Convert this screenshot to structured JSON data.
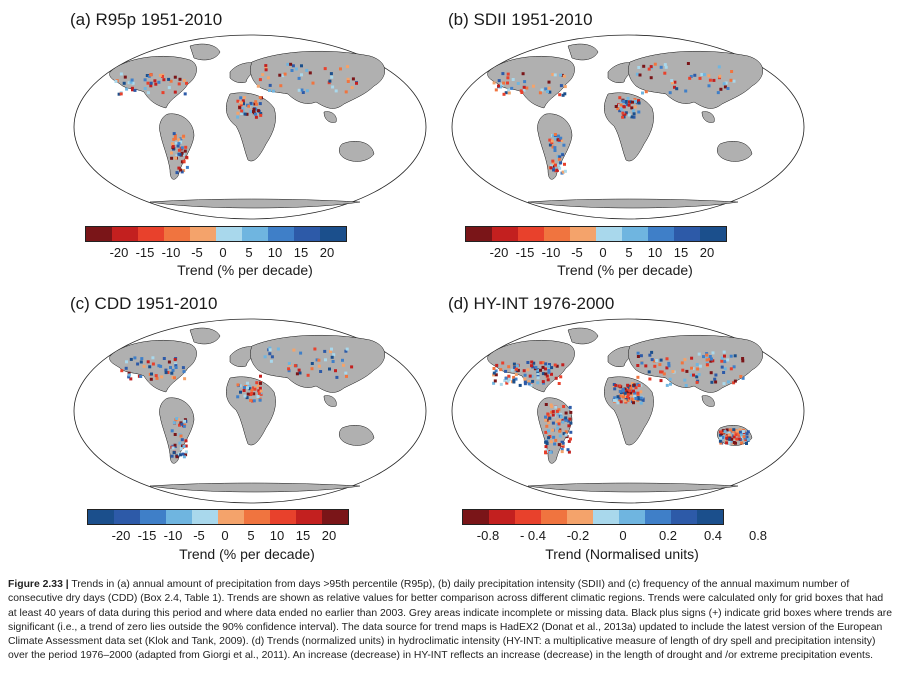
{
  "colors": {
    "land_missing": "#b0b0b0",
    "ocean": "#ffffff",
    "coast": "#111111"
  },
  "panels": [
    {
      "title": "(a)  R95p 1951-2010",
      "colorbar": [
        "#7a1518",
        "#c3201f",
        "#e8412c",
        "#f0743f",
        "#f4a36b",
        "#a9d8ec",
        "#6fb5e0",
        "#3f7fc8",
        "#2d5aa8",
        "#1b4f8c"
      ],
      "tick_labels": [
        "-20",
        "-15",
        "-10",
        "-5",
        "0",
        "5",
        "10",
        "15",
        "20"
      ],
      "unit": "Trend (% per decade)"
    },
    {
      "title": "(b)  SDII 1951-2010",
      "colorbar": [
        "#7a1518",
        "#c3201f",
        "#e8412c",
        "#f0743f",
        "#f4a36b",
        "#a9d8ec",
        "#6fb5e0",
        "#3f7fc8",
        "#2d5aa8",
        "#1b4f8c"
      ],
      "tick_labels": [
        "-20",
        "-15",
        "-10",
        "-5",
        "0",
        "5",
        "10",
        "15",
        "20"
      ],
      "unit": "Trend (% per decade)"
    },
    {
      "title": "(c)  CDD 1951-2010",
      "colorbar": [
        "#1b4f8c",
        "#2d5aa8",
        "#3f7fc8",
        "#6fb5e0",
        "#a9d8ec",
        "#f4a36b",
        "#f0743f",
        "#e8412c",
        "#c3201f",
        "#7a1518"
      ],
      "tick_labels": [
        "-20",
        "-15",
        "-10",
        "-5",
        "0",
        "5",
        "10",
        "15",
        "20"
      ],
      "unit": "Trend (% per decade)"
    },
    {
      "title": "(d)  HY-INT 1976-2000",
      "colorbar": [
        "#7a1518",
        "#c3201f",
        "#e8412c",
        "#f0743f",
        "#f4a36b",
        "#a9d8ec",
        "#6fb5e0",
        "#3f7fc8",
        "#2d5aa8",
        "#1b4f8c"
      ],
      "tick_labels": [
        "-0.8",
        "- 0.4",
        "-0.2",
        "0",
        "0.2",
        "0.4",
        "0.8"
      ],
      "unit": "Trend (Normalised units)"
    }
  ],
  "caption": {
    "label": "Figure 2.33 |",
    "text": " Trends in (a) annual amount of precipitation from days >95th percentile (R95p), (b) daily precipitation intensity (SDII) and (c) frequency of the annual maximum number of consecutive dry days (CDD) (Box 2.4, Table 1). Trends are shown as relative values for better comparison across different climatic regions. Trends were calculated only for grid boxes that had at least 40 years of data during this period and where data ended no earlier than 2003. Grey areas indicate incomplete or missing data. Black plus signs (+) indicate grid boxes where trends are significant (i.e., a trend of zero lies outside the 90% confidence interval). The data source for trend maps is HadEX2 (Donat et al., 2013a) updated to include the latest version of the European Climate Assessment data set (Klok and Tank, 2009). (d) Trends (normalized units) in hydroclimatic intensity (HY-INT: a multiplicative measure of length of dry spell and precipitation intensity) over the period 1976–2000 (adapted from Giorgi et al., 2011). An increase (decrease) in HY-INT reflects an increase (decrease) in the length of drought and /or extreme precipitation events."
  }
}
